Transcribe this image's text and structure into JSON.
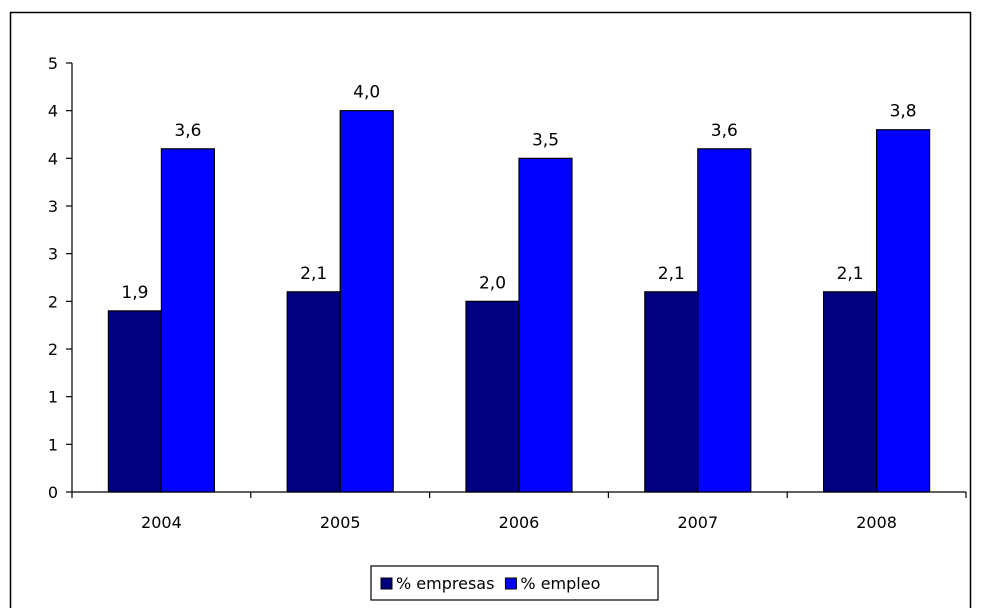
{
  "chart_data": {
    "type": "bar",
    "title": "",
    "xlabel": "",
    "ylabel": "",
    "categories": [
      "2004",
      "2005",
      "2006",
      "2007",
      "2008"
    ],
    "y_tick_labels": [
      "0",
      "1",
      "1",
      "2",
      "2",
      "3",
      "3",
      "4",
      "4",
      "5"
    ],
    "ylim": [
      0,
      4.5
    ],
    "grid": false,
    "legend_position": "bottom",
    "series": [
      {
        "name": "% empresas",
        "color": "#000080",
        "values": [
          1.9,
          2.1,
          2.0,
          2.1,
          2.1
        ],
        "labels": [
          "1,9",
          "2,1",
          "2,0",
          "2,1",
          "2,1"
        ]
      },
      {
        "name": "% empleo",
        "color": "#0000FF",
        "values": [
          3.6,
          4.0,
          3.5,
          3.6,
          3.8
        ],
        "labels": [
          "3,6",
          "4,0",
          "3,5",
          "3,6",
          "3,8"
        ]
      }
    ]
  }
}
